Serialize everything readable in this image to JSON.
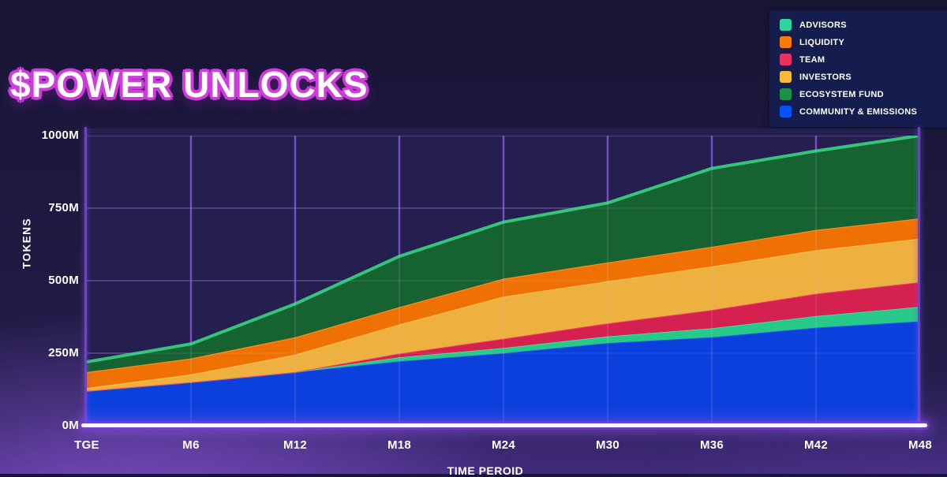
{
  "title": "$POWER UNLOCKS",
  "legend": {
    "items": [
      {
        "label": "ADVISORS",
        "color": "#31d39e"
      },
      {
        "label": "LIQUIDITY",
        "color": "#f87b05"
      },
      {
        "label": "TEAM",
        "color": "#e8335f"
      },
      {
        "label": "INVESTORS",
        "color": "#f6b93e"
      },
      {
        "label": "ECOSYSTEM FUND",
        "color": "#1a9144"
      },
      {
        "label": "COMMUNITY & EMISSIONS",
        "color": "#0452f8"
      }
    ]
  },
  "chart_data": {
    "type": "area",
    "stacked": true,
    "title": "$POWER UNLOCKS",
    "xlabel": "TIME PEROID",
    "ylabel": "TOKENS",
    "categories": [
      "TGE",
      "M6",
      "M12",
      "M18",
      "M24",
      "M30",
      "M36",
      "M42",
      "M48"
    ],
    "ylim": [
      0,
      1000
    ],
    "yticks": [
      {
        "label": "0M",
        "value": 0
      },
      {
        "label": "250M",
        "value": 250
      },
      {
        "label": "500M",
        "value": 500
      },
      {
        "label": "750M",
        "value": 750
      },
      {
        "label": "1000M",
        "value": 1000
      }
    ],
    "grid": true,
    "legend_position": "top-right",
    "units": "millions of tokens",
    "series_note": "values estimated from gridlines; stacked bottom-to-top in listed order",
    "series": [
      {
        "name": "COMMUNITY & EMISSIONS",
        "color": "#0c40dd",
        "stroke": "#2257f0",
        "stroke_width": 2,
        "values": [
          120,
          150,
          185,
          222,
          250,
          285,
          305,
          338,
          360
        ]
      },
      {
        "name": "ADVISORS",
        "color": "#27c98b",
        "stroke": "#40e2a4",
        "stroke_width": 2,
        "values": [
          0,
          0,
          0,
          14,
          18,
          23,
          31,
          40,
          50
        ]
      },
      {
        "name": "TEAM",
        "color": "#d4214f",
        "stroke": "#f14374",
        "stroke_width": 2,
        "values": [
          0,
          0,
          0,
          13,
          32,
          45,
          63,
          77,
          85
        ]
      },
      {
        "name": "INVESTORS",
        "color": "#eeb03f",
        "stroke": "#ffc857",
        "stroke_width": 2,
        "values": [
          10,
          27,
          60,
          100,
          145,
          145,
          150,
          150,
          150
        ]
      },
      {
        "name": "LIQUIDITY",
        "color": "#ef7104",
        "stroke": "#ff8c1c",
        "stroke_width": 2.5,
        "values": [
          55,
          55,
          60,
          60,
          62,
          65,
          68,
          70,
          70
        ]
      },
      {
        "name": "ECOSYSTEM FUND",
        "color": "#166230",
        "stroke": "#35ce7e",
        "stroke_width": 4,
        "values": [
          35,
          50,
          115,
          175,
          195,
          205,
          270,
          272,
          285
        ]
      }
    ]
  },
  "colors": {
    "background_top": "#181535",
    "background_glow": "#7a4cc2",
    "plot_background": "#241f4e",
    "gridline": "#7a46d8",
    "axis_line": "#7140cf",
    "baseline": "#ffffff",
    "title_outline": "#cf3bdd",
    "legend_background": "#141d4e",
    "text": "#ffffff"
  }
}
